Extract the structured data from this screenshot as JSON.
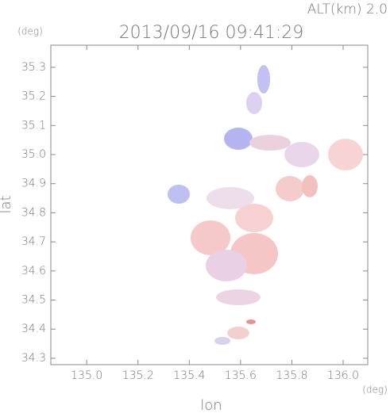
{
  "chart_data": {
    "type": "map",
    "annotation": "ALT(km) 2.0",
    "title": "2013/09/16 09:41:29",
    "y_unit": "(deg)",
    "x_unit": "(deg)",
    "ylabel": "lat",
    "xlabel": "lon",
    "xlim": [
      134.86,
      136.096
    ],
    "ylim": [
      34.278,
      35.376
    ],
    "xticks": [
      {
        "value": 135,
        "label": "135.0"
      },
      135.2,
      135.4,
      135.6,
      135.8,
      {
        "value": 136,
        "label": "136.0"
      }
    ],
    "yticks": [
      34.3,
      34.4,
      34.5,
      34.6,
      34.7,
      34.8,
      34.9,
      {
        "value": 35,
        "label": "35.0"
      },
      35.1,
      35.2,
      35.3
    ]
  }
}
